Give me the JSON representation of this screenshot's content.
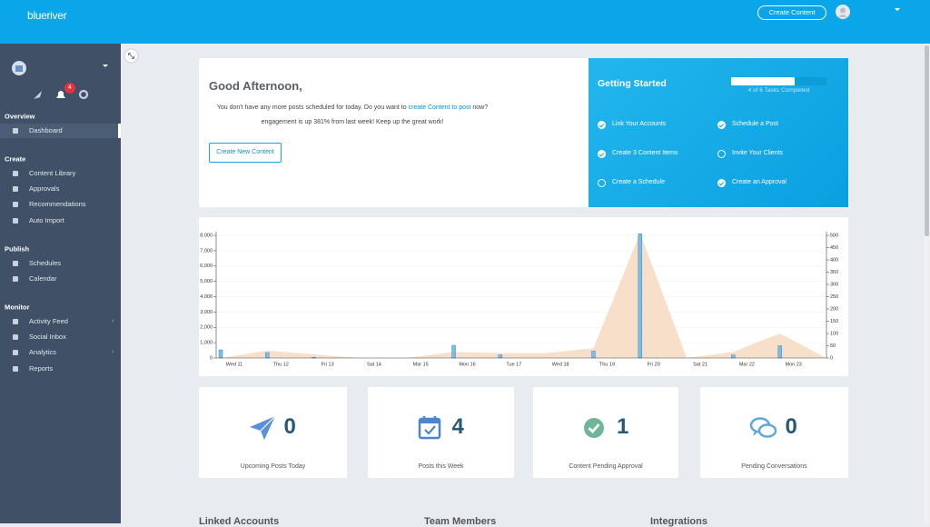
{
  "header": {
    "logo": "blueriver",
    "create_button": "Create Content"
  },
  "sidebar": {
    "notification_count": 4,
    "sections": [
      {
        "title": "Overview",
        "items": [
          {
            "label": "Dashboard",
            "active": true
          }
        ]
      },
      {
        "title": "Create",
        "items": [
          {
            "label": "Content Library"
          },
          {
            "label": "Approvals"
          },
          {
            "label": "Recommendations"
          },
          {
            "label": "Auto Import"
          }
        ]
      },
      {
        "title": "Publish",
        "items": [
          {
            "label": "Schedules"
          },
          {
            "label": "Calendar"
          }
        ]
      },
      {
        "title": "Monitor",
        "items": [
          {
            "label": "Activity Feed",
            "caret": true
          },
          {
            "label": "Social Inbox"
          },
          {
            "label": "Analytics",
            "caret": true
          },
          {
            "label": "Reports"
          }
        ]
      }
    ]
  },
  "welcome": {
    "greeting": "Good Afternoon,",
    "message_before": "You don't have any more posts scheduled for today. Do you want to ",
    "link": "create Content to post",
    "message_after": " now?",
    "engagement": "engagement is up 381% from last week! Keep up the great work!",
    "button": "Create New Content"
  },
  "getting_started": {
    "title": "Getting Started",
    "progress": "4 of 6 Tasks Completed",
    "tasks": [
      {
        "label": "Link Your Accounts",
        "done": true
      },
      {
        "label": "Create 3 Content Items",
        "done": true
      },
      {
        "label": "Create a Schedule",
        "done": false
      },
      {
        "label": "Schedule a Post",
        "done": true
      },
      {
        "label": "Invite Your Clients",
        "done": false
      },
      {
        "label": "Create an Approval",
        "done": true
      }
    ]
  },
  "chart_data": {
    "type": "bar",
    "categories": [
      "Wed 11",
      "Thu 12",
      "Fri 13",
      "Sat 14",
      "Mar 15",
      "Mon 16",
      "Tue 17",
      "Wed 18",
      "Thu 19",
      "Fri 20",
      "Sat 21",
      "Mar 22",
      "Mon 23",
      null
    ],
    "series": [
      {
        "type": "bar",
        "color": "#7dbde0",
        "values": [
          530,
          350,
          50,
          0,
          0,
          830,
          200,
          0,
          450,
          8100,
          0,
          200,
          800,
          0
        ]
      },
      {
        "type": "area",
        "color": "#f6d9c0",
        "axis": "y2",
        "values": [
          0,
          30,
          15,
          0,
          0,
          25,
          20,
          20,
          40,
          510,
          0,
          25,
          100,
          0
        ]
      }
    ],
    "ylim": [
      0,
      8240
    ],
    "yticks": [
      0,
      {
        "value": 1000,
        "label": "1,000"
      },
      {
        "value": 2000,
        "label": "2,000"
      },
      {
        "value": 3000,
        "label": "3,000"
      },
      {
        "value": 4000,
        "label": "4,000"
      },
      {
        "value": 5000,
        "label": "5,000"
      },
      {
        "value": 6000,
        "label": "6,000"
      },
      {
        "value": 7000,
        "label": "7,000"
      },
      {
        "value": 8000,
        "label": "8,000"
      }
    ],
    "y2lim": [
      0,
      515
    ],
    "y2ticks": [
      0,
      50,
      100,
      150,
      200,
      250,
      300,
      350,
      400,
      450,
      500
    ],
    "grid": true
  },
  "stats": [
    {
      "value": 0,
      "label": "Upcoming Posts Today"
    },
    {
      "value": 4,
      "label": "Posts this Week"
    },
    {
      "value": 1,
      "label": "Content Pending Approval"
    },
    {
      "value": 0,
      "label": "Pending Conversations"
    }
  ],
  "sections": [
    "Linked Accounts",
    "Team Members",
    "Integrations"
  ]
}
